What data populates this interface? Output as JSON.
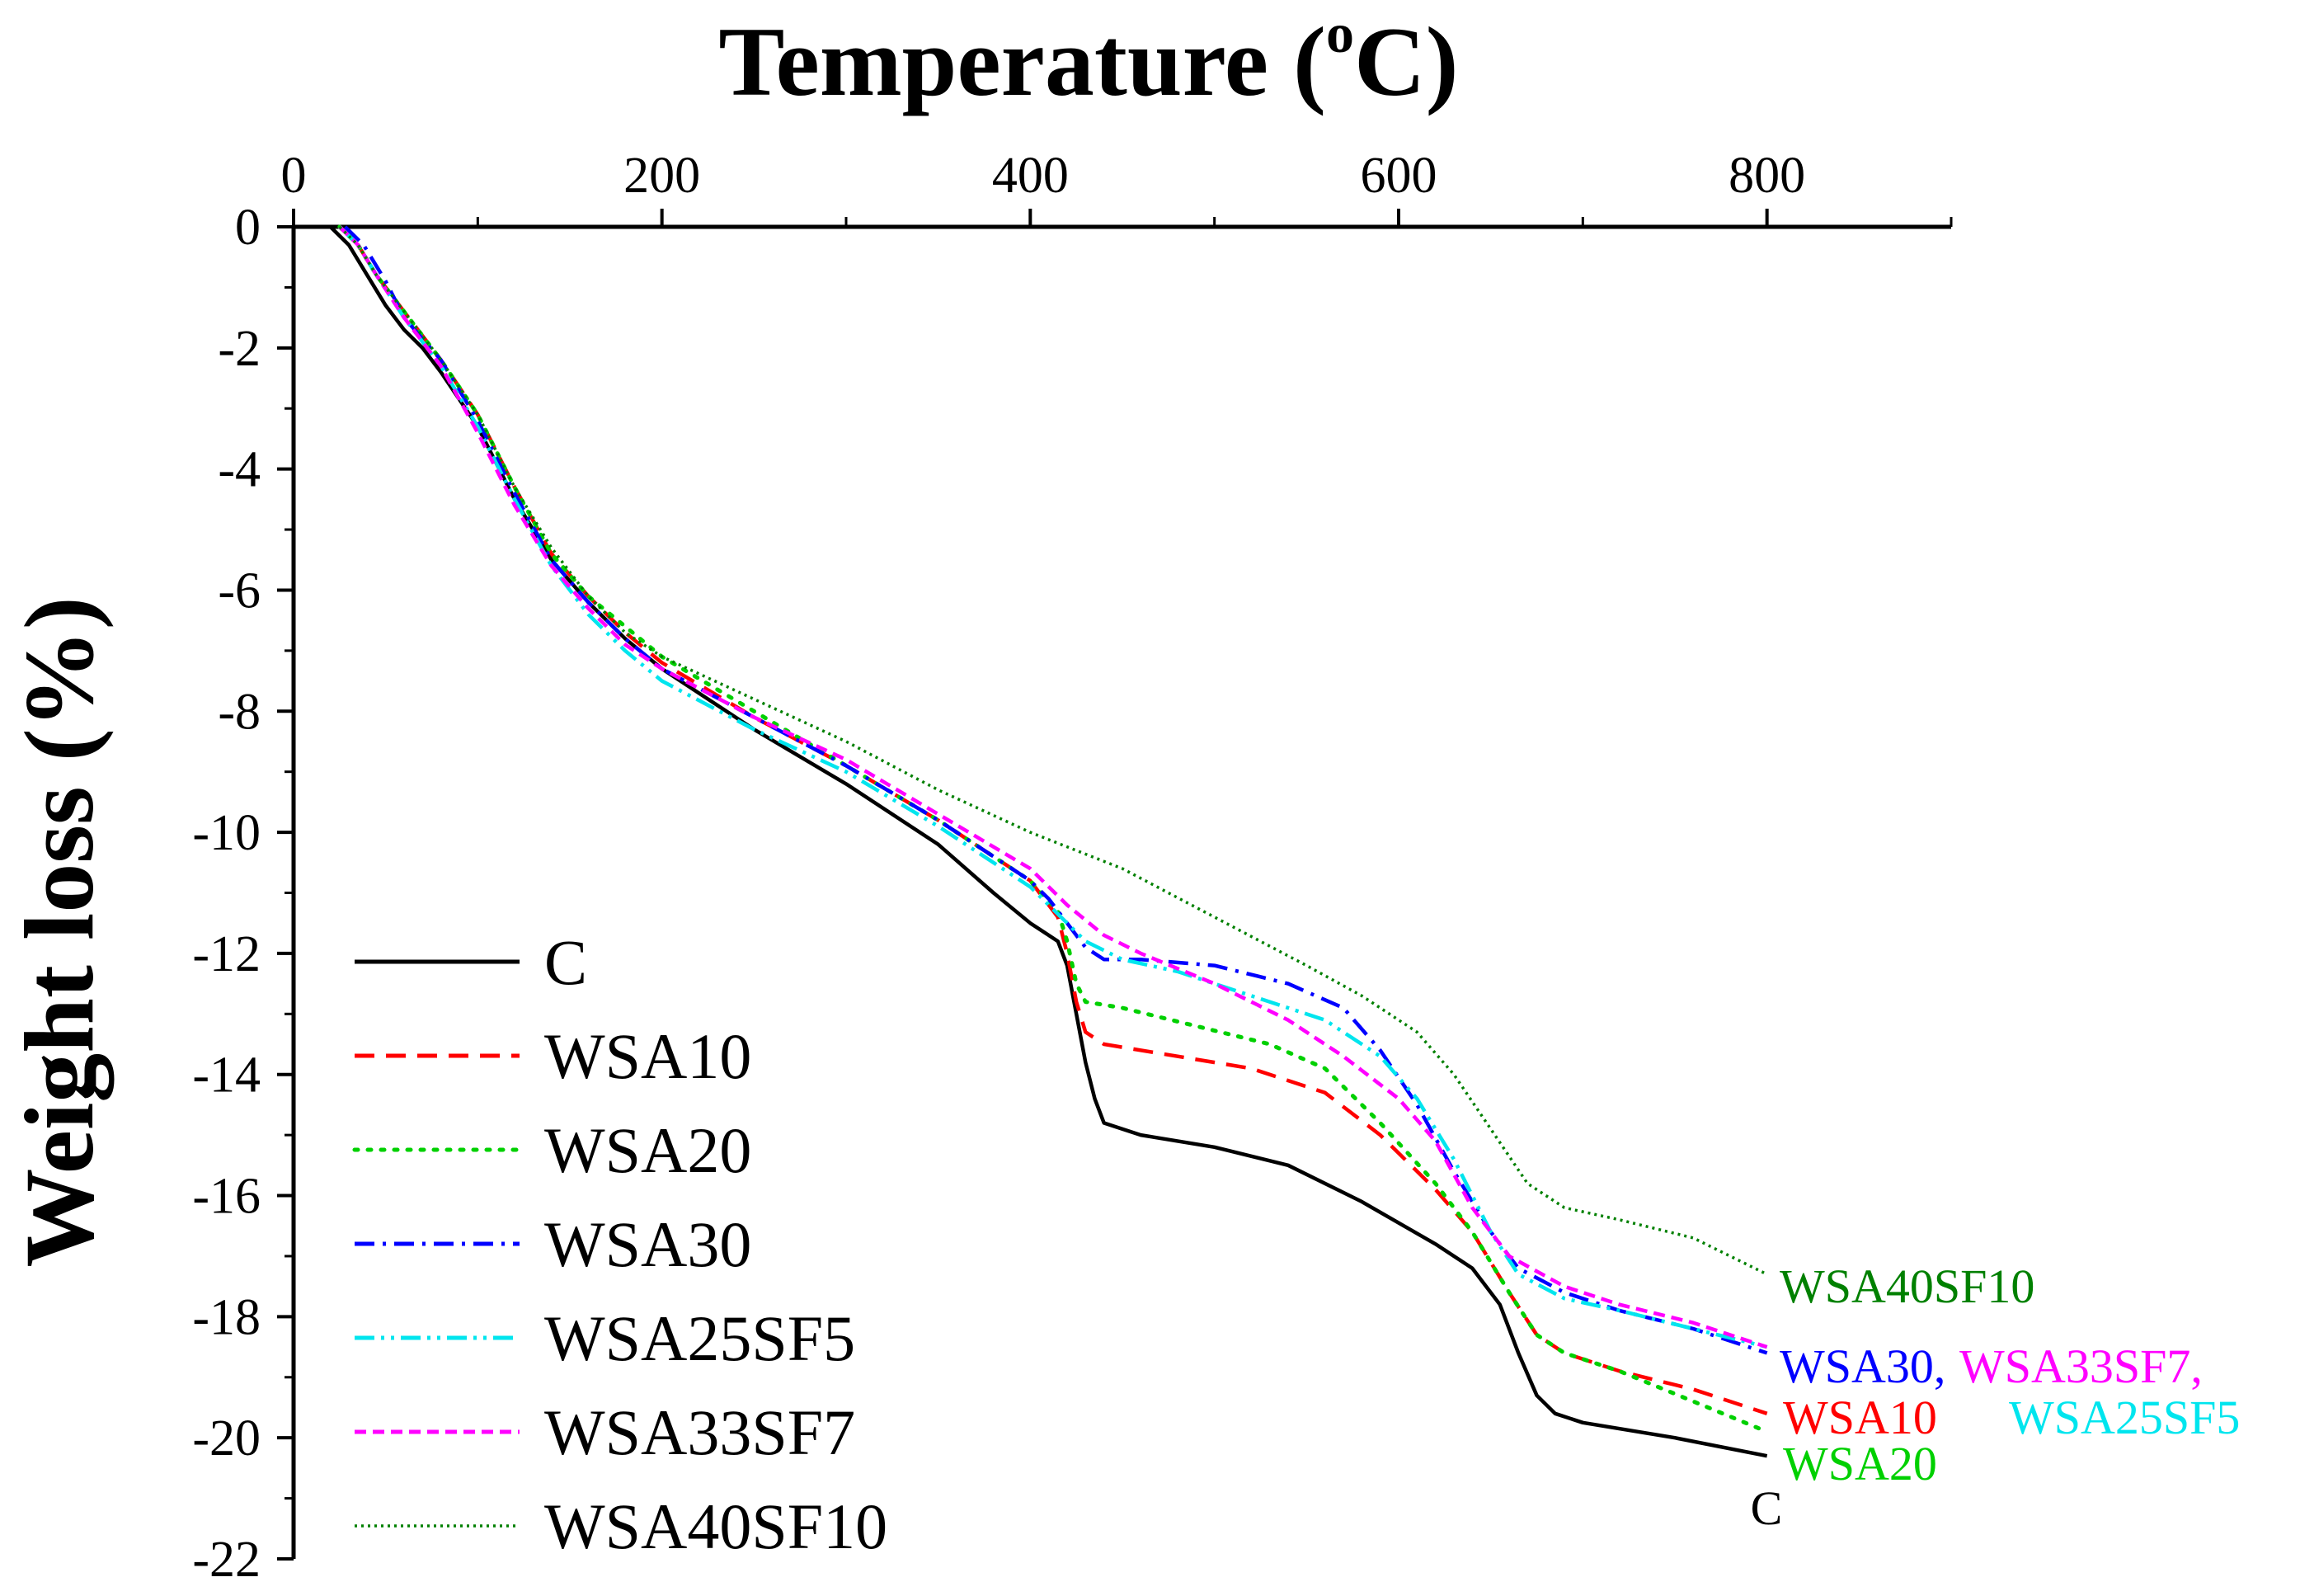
{
  "chart_data": {
    "type": "line",
    "title": "",
    "xlabel": "Temperature (oC)",
    "xlabel_parts": {
      "main": "Temperature (",
      "superscript": "o",
      "end": "C)"
    },
    "ylabel": "Weight loss (%)",
    "xlim": [
      0,
      900
    ],
    "ylim": [
      -22,
      0
    ],
    "x_ticks": [
      0,
      200,
      400,
      600,
      800
    ],
    "x_tick_labels": [
      "0",
      "200",
      "400",
      "600",
      "800"
    ],
    "y_ticks": [
      0,
      -2,
      -4,
      -6,
      -8,
      -10,
      -12,
      -14,
      -16,
      -18,
      -20,
      -22
    ],
    "y_tick_labels": [
      "0",
      "-2",
      "-4",
      "-6",
      "-8",
      "-10",
      "-12",
      "-14",
      "-16",
      "-18",
      "-20",
      "-22"
    ],
    "x_axis_position": "top",
    "grid": false,
    "legend_position": "bottom-left",
    "series": [
      {
        "name": "C",
        "color": "#000000",
        "dash": "solid",
        "points": [
          [
            20,
            0
          ],
          [
            30,
            -0.3
          ],
          [
            40,
            -0.8
          ],
          [
            50,
            -1.3
          ],
          [
            60,
            -1.7
          ],
          [
            70,
            -2.0
          ],
          [
            80,
            -2.4
          ],
          [
            100,
            -3.3
          ],
          [
            120,
            -4.5
          ],
          [
            140,
            -5.5
          ],
          [
            160,
            -6.2
          ],
          [
            180,
            -6.8
          ],
          [
            200,
            -7.3
          ],
          [
            250,
            -8.3
          ],
          [
            300,
            -9.2
          ],
          [
            350,
            -10.2
          ],
          [
            380,
            -11.0
          ],
          [
            400,
            -11.5
          ],
          [
            415,
            -11.8
          ],
          [
            420,
            -12.2
          ],
          [
            425,
            -13.0
          ],
          [
            430,
            -13.8
          ],
          [
            435,
            -14.4
          ],
          [
            440,
            -14.8
          ],
          [
            460,
            -15.0
          ],
          [
            500,
            -15.2
          ],
          [
            540,
            -15.5
          ],
          [
            580,
            -16.1
          ],
          [
            620,
            -16.8
          ],
          [
            640,
            -17.2
          ],
          [
            655,
            -17.8
          ],
          [
            665,
            -18.6
          ],
          [
            675,
            -19.3
          ],
          [
            685,
            -19.6
          ],
          [
            700,
            -19.75
          ],
          [
            750,
            -20.0
          ],
          [
            800,
            -20.3
          ]
        ],
        "end_label": "C",
        "end_label_color": "#000000"
      },
      {
        "name": "WSA10",
        "color": "#ff0000",
        "dash": "dashed",
        "points": [
          [
            25,
            0
          ],
          [
            35,
            -0.3
          ],
          [
            45,
            -0.8
          ],
          [
            60,
            -1.4
          ],
          [
            80,
            -2.2
          ],
          [
            100,
            -3.1
          ],
          [
            120,
            -4.3
          ],
          [
            140,
            -5.4
          ],
          [
            160,
            -6.1
          ],
          [
            180,
            -6.7
          ],
          [
            200,
            -7.2
          ],
          [
            250,
            -8.1
          ],
          [
            300,
            -8.9
          ],
          [
            350,
            -9.8
          ],
          [
            400,
            -10.8
          ],
          [
            415,
            -11.4
          ],
          [
            420,
            -12.0
          ],
          [
            425,
            -12.8
          ],
          [
            430,
            -13.3
          ],
          [
            440,
            -13.5
          ],
          [
            480,
            -13.7
          ],
          [
            520,
            -13.9
          ],
          [
            560,
            -14.3
          ],
          [
            590,
            -15.0
          ],
          [
            620,
            -15.9
          ],
          [
            640,
            -16.6
          ],
          [
            660,
            -17.6
          ],
          [
            675,
            -18.3
          ],
          [
            690,
            -18.6
          ],
          [
            720,
            -18.9
          ],
          [
            760,
            -19.2
          ],
          [
            800,
            -19.6
          ]
        ],
        "end_label": "WSA10",
        "end_label_color": "#ff0000"
      },
      {
        "name": "WSA20",
        "color": "#00d000",
        "dash": "dotted",
        "points": [
          [
            25,
            0
          ],
          [
            35,
            -0.3
          ],
          [
            45,
            -0.8
          ],
          [
            60,
            -1.4
          ],
          [
            80,
            -2.2
          ],
          [
            100,
            -3.1
          ],
          [
            120,
            -4.3
          ],
          [
            140,
            -5.4
          ],
          [
            160,
            -6.1
          ],
          [
            180,
            -6.6
          ],
          [
            200,
            -7.1
          ],
          [
            250,
            -8.0
          ],
          [
            300,
            -8.9
          ],
          [
            350,
            -9.8
          ],
          [
            400,
            -10.8
          ],
          [
            415,
            -11.3
          ],
          [
            420,
            -11.8
          ],
          [
            425,
            -12.5
          ],
          [
            430,
            -12.8
          ],
          [
            450,
            -12.9
          ],
          [
            490,
            -13.2
          ],
          [
            530,
            -13.5
          ],
          [
            560,
            -13.9
          ],
          [
            590,
            -14.8
          ],
          [
            620,
            -15.8
          ],
          [
            640,
            -16.6
          ],
          [
            660,
            -17.6
          ],
          [
            675,
            -18.3
          ],
          [
            690,
            -18.6
          ],
          [
            720,
            -18.9
          ],
          [
            760,
            -19.4
          ],
          [
            800,
            -19.9
          ]
        ],
        "end_label": "WSA20",
        "end_label_color": "#00d000"
      },
      {
        "name": "WSA30",
        "color": "#0000ff",
        "dash": "dashdot",
        "points": [
          [
            28,
            0
          ],
          [
            38,
            -0.3
          ],
          [
            50,
            -0.9
          ],
          [
            60,
            -1.5
          ],
          [
            80,
            -2.2
          ],
          [
            100,
            -3.2
          ],
          [
            120,
            -4.4
          ],
          [
            140,
            -5.5
          ],
          [
            160,
            -6.2
          ],
          [
            180,
            -6.8
          ],
          [
            200,
            -7.3
          ],
          [
            250,
            -8.1
          ],
          [
            300,
            -8.9
          ],
          [
            350,
            -9.8
          ],
          [
            400,
            -10.8
          ],
          [
            410,
            -11.1
          ],
          [
            420,
            -11.5
          ],
          [
            430,
            -11.9
          ],
          [
            440,
            -12.1
          ],
          [
            460,
            -12.1
          ],
          [
            500,
            -12.2
          ],
          [
            540,
            -12.5
          ],
          [
            570,
            -12.9
          ],
          [
            590,
            -13.6
          ],
          [
            610,
            -14.5
          ],
          [
            630,
            -15.6
          ],
          [
            650,
            -16.6
          ],
          [
            665,
            -17.2
          ],
          [
            690,
            -17.6
          ],
          [
            720,
            -17.9
          ],
          [
            760,
            -18.2
          ],
          [
            800,
            -18.6
          ]
        ],
        "end_label": "WSA30,",
        "end_label_color": "#0000ff"
      },
      {
        "name": "WSA25SF5",
        "color": "#00e5ee",
        "dash": "dashdotdot",
        "points": [
          [
            25,
            0
          ],
          [
            35,
            -0.3
          ],
          [
            45,
            -0.8
          ],
          [
            60,
            -1.5
          ],
          [
            80,
            -2.3
          ],
          [
            100,
            -3.3
          ],
          [
            120,
            -4.5
          ],
          [
            140,
            -5.6
          ],
          [
            160,
            -6.4
          ],
          [
            180,
            -7.0
          ],
          [
            200,
            -7.5
          ],
          [
            250,
            -8.3
          ],
          [
            300,
            -9.0
          ],
          [
            350,
            -9.9
          ],
          [
            400,
            -10.9
          ],
          [
            420,
            -11.5
          ],
          [
            430,
            -11.8
          ],
          [
            450,
            -12.1
          ],
          [
            480,
            -12.3
          ],
          [
            520,
            -12.7
          ],
          [
            560,
            -13.1
          ],
          [
            590,
            -13.7
          ],
          [
            610,
            -14.4
          ],
          [
            630,
            -15.4
          ],
          [
            650,
            -16.6
          ],
          [
            665,
            -17.3
          ],
          [
            690,
            -17.7
          ],
          [
            720,
            -17.9
          ],
          [
            760,
            -18.2
          ],
          [
            800,
            -18.5
          ]
        ],
        "end_label": "WSA25SF5",
        "end_label_color": "#00e5ee"
      },
      {
        "name": "WSA33SF7",
        "color": "#ff00ff",
        "dash": "shortdash",
        "points": [
          [
            25,
            0
          ],
          [
            35,
            -0.3
          ],
          [
            45,
            -0.8
          ],
          [
            60,
            -1.5
          ],
          [
            80,
            -2.3
          ],
          [
            100,
            -3.4
          ],
          [
            120,
            -4.6
          ],
          [
            140,
            -5.6
          ],
          [
            160,
            -6.3
          ],
          [
            180,
            -6.9
          ],
          [
            200,
            -7.3
          ],
          [
            250,
            -8.1
          ],
          [
            300,
            -8.8
          ],
          [
            350,
            -9.7
          ],
          [
            400,
            -10.6
          ],
          [
            420,
            -11.2
          ],
          [
            440,
            -11.7
          ],
          [
            460,
            -12.0
          ],
          [
            500,
            -12.5
          ],
          [
            540,
            -13.1
          ],
          [
            570,
            -13.7
          ],
          [
            600,
            -14.4
          ],
          [
            620,
            -15.1
          ],
          [
            640,
            -16.2
          ],
          [
            660,
            -17.0
          ],
          [
            690,
            -17.5
          ],
          [
            720,
            -17.8
          ],
          [
            760,
            -18.1
          ],
          [
            800,
            -18.5
          ]
        ],
        "end_label": "WSA33SF7,",
        "end_label_color": "#ff00ff"
      },
      {
        "name": "WSA40SF10",
        "color": "#008000",
        "dash": "fine-dotted",
        "points": [
          [
            25,
            0
          ],
          [
            35,
            -0.3
          ],
          [
            45,
            -0.8
          ],
          [
            60,
            -1.4
          ],
          [
            80,
            -2.2
          ],
          [
            100,
            -3.1
          ],
          [
            120,
            -4.3
          ],
          [
            140,
            -5.3
          ],
          [
            160,
            -6.1
          ],
          [
            180,
            -6.7
          ],
          [
            200,
            -7.1
          ],
          [
            250,
            -7.8
          ],
          [
            300,
            -8.5
          ],
          [
            350,
            -9.3
          ],
          [
            400,
            -10.0
          ],
          [
            450,
            -10.6
          ],
          [
            500,
            -11.4
          ],
          [
            550,
            -12.2
          ],
          [
            580,
            -12.7
          ],
          [
            610,
            -13.3
          ],
          [
            630,
            -14.0
          ],
          [
            650,
            -14.9
          ],
          [
            670,
            -15.8
          ],
          [
            690,
            -16.2
          ],
          [
            720,
            -16.4
          ],
          [
            760,
            -16.7
          ],
          [
            800,
            -17.3
          ]
        ],
        "end_label": "WSA40SF10",
        "end_label_color": "#008000"
      }
    ]
  }
}
